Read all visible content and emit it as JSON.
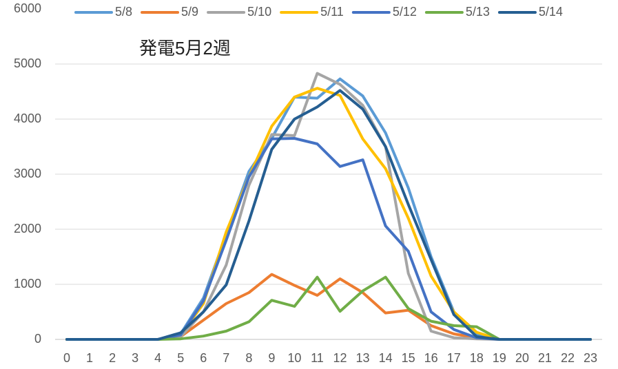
{
  "chart_data": {
    "type": "line",
    "title": "発電5月2週",
    "categories": [
      "0",
      "1",
      "2",
      "3",
      "4",
      "5",
      "6",
      "7",
      "8",
      "9",
      "10",
      "11",
      "12",
      "13",
      "14",
      "15",
      "16",
      "17",
      "18",
      "19",
      "20",
      "21",
      "22",
      "23"
    ],
    "ylim": [
      0,
      6000
    ],
    "yticks": [
      0,
      1000,
      2000,
      3000,
      4000,
      5000,
      6000
    ],
    "grid": true,
    "legend": "top",
    "series": [
      {
        "name": "5/8",
        "color": "#5b9bd5",
        "values": [
          0,
          0,
          0,
          0,
          0,
          100,
          750,
          1900,
          3050,
          3650,
          4400,
          4380,
          4730,
          4420,
          3750,
          2750,
          1500,
          500,
          80,
          0,
          0,
          0,
          0,
          0
        ]
      },
      {
        "name": "5/9",
        "color": "#ed7d31",
        "values": [
          0,
          0,
          0,
          0,
          0,
          50,
          350,
          650,
          850,
          1180,
          980,
          800,
          1100,
          850,
          480,
          530,
          250,
          100,
          30,
          0,
          0,
          0,
          0,
          0
        ]
      },
      {
        "name": "5/10",
        "color": "#a5a5a5",
        "values": [
          0,
          0,
          0,
          0,
          0,
          50,
          500,
          1350,
          2800,
          3720,
          3700,
          4830,
          4630,
          4250,
          3500,
          1200,
          150,
          30,
          10,
          0,
          0,
          0,
          0,
          0
        ]
      },
      {
        "name": "5/11",
        "color": "#ffc000",
        "values": [
          0,
          0,
          0,
          0,
          0,
          80,
          650,
          1950,
          2950,
          3870,
          4400,
          4560,
          4430,
          3640,
          3100,
          2200,
          1150,
          500,
          130,
          0,
          0,
          0,
          0,
          0
        ]
      },
      {
        "name": "5/12",
        "color": "#4472c4",
        "values": [
          0,
          0,
          0,
          0,
          0,
          80,
          700,
          1800,
          2950,
          3640,
          3650,
          3550,
          3140,
          3260,
          2060,
          1600,
          500,
          180,
          30,
          0,
          0,
          0,
          0,
          0
        ]
      },
      {
        "name": "5/13",
        "color": "#70ad47",
        "values": [
          0,
          0,
          0,
          0,
          0,
          10,
          60,
          150,
          320,
          710,
          600,
          1130,
          510,
          880,
          1130,
          560,
          330,
          250,
          230,
          0,
          0,
          0,
          0,
          0
        ]
      },
      {
        "name": "5/14",
        "color": "#255e91",
        "values": [
          0,
          0,
          0,
          0,
          0,
          120,
          500,
          990,
          2150,
          3450,
          4000,
          4220,
          4520,
          4180,
          3500,
          2450,
          1450,
          450,
          50,
          0,
          0,
          0,
          0,
          0
        ]
      }
    ]
  }
}
